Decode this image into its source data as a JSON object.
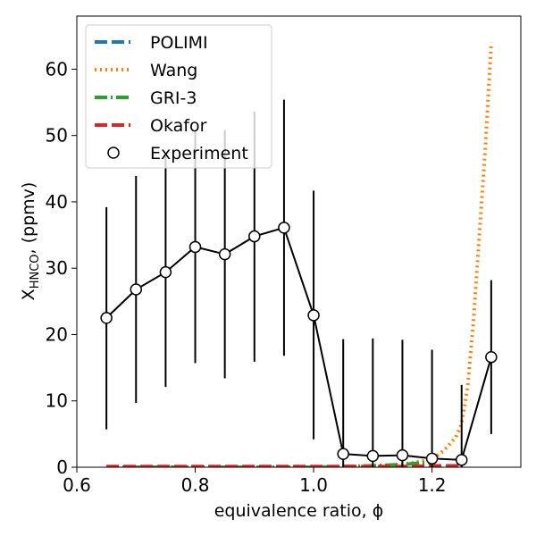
{
  "chart_data": {
    "type": "line",
    "xlabel": "equivalence ratio, ϕ",
    "ylabel": "X",
    "ylabel_subscript": "HNCO",
    "ylabel_unit": ", (ppmv)",
    "xlim": [
      0.6,
      1.35
    ],
    "ylim": [
      0,
      68
    ],
    "xticks": [
      0.6,
      0.8,
      1.0,
      1.2
    ],
    "xtick_labels": [
      "0.6",
      "0.8",
      "1.0",
      "1.2"
    ],
    "yticks": [
      0,
      10,
      20,
      30,
      40,
      50,
      60
    ],
    "ytick_labels": [
      "0",
      "10",
      "20",
      "30",
      "40",
      "50",
      "60"
    ],
    "legend_position": "top-left",
    "series": [
      {
        "name": "POLIMI",
        "color": "#1f77b4",
        "style": "dashed",
        "x": [
          0.65,
          0.7,
          0.75,
          0.8,
          0.85,
          0.9,
          0.95,
          1.0,
          1.05,
          1.1,
          1.15,
          1.2,
          1.25
        ],
        "y": [
          0,
          0,
          0,
          0,
          0,
          0,
          0,
          0,
          0,
          0,
          0,
          0,
          0
        ]
      },
      {
        "name": "Wang",
        "color": "#ff7f0e",
        "style": "dotted",
        "x": [
          0.65,
          0.7,
          0.75,
          0.8,
          0.85,
          0.9,
          0.95,
          1.0,
          1.05,
          1.1,
          1.15,
          1.2,
          1.22,
          1.24,
          1.25,
          1.26,
          1.27,
          1.28,
          1.29,
          1.3
        ],
        "y": [
          0,
          0,
          0,
          0,
          0,
          0,
          0,
          0,
          0.1,
          0.2,
          0.4,
          1.2,
          2.5,
          4.5,
          6.5,
          12,
          22,
          35,
          48,
          64
        ]
      },
      {
        "name": "GRI-3",
        "color": "#2ca02c",
        "style": "dashdot",
        "x": [
          0.65,
          0.7,
          0.75,
          0.8,
          0.85,
          0.9,
          0.95,
          1.0,
          1.05,
          1.1,
          1.15,
          1.2
        ],
        "y": [
          0,
          0,
          0,
          0,
          0,
          0,
          0,
          0,
          0.1,
          0.2,
          0.4,
          0.8
        ]
      },
      {
        "name": "Okafor",
        "color": "#d62728",
        "style": "dashed",
        "x": [
          0.65,
          0.7,
          0.75,
          0.8,
          0.85,
          0.9,
          0.95,
          1.0,
          1.05,
          1.1,
          1.15,
          1.2,
          1.25
        ],
        "y": [
          0.1,
          0.1,
          0.1,
          0.1,
          0.1,
          0.1,
          0.1,
          0.1,
          0.1,
          0.1,
          0.1,
          0.2,
          0.2
        ]
      },
      {
        "name": "Experiment",
        "color": "#000000",
        "style": "marker-line",
        "x": [
          0.65,
          0.7,
          0.75,
          0.8,
          0.85,
          0.9,
          0.95,
          1.0,
          1.05,
          1.1,
          1.15,
          1.2,
          1.25,
          1.3
        ],
        "y": [
          22.5,
          26.8,
          29.4,
          33.2,
          32.1,
          34.8,
          36.1,
          22.9,
          2.0,
          1.7,
          1.8,
          1.3,
          1.1,
          16.6
        ],
        "err_low": [
          5.7,
          9.7,
          12.1,
          15.7,
          13.4,
          15.9,
          16.8,
          4.2,
          0,
          0,
          0,
          0,
          0,
          5.0
        ],
        "err_high": [
          39.2,
          43.9,
          46.9,
          50.8,
          50.8,
          53.6,
          55.4,
          41.7,
          19.3,
          19.4,
          19.2,
          17.7,
          12.4,
          28.2
        ]
      }
    ]
  }
}
